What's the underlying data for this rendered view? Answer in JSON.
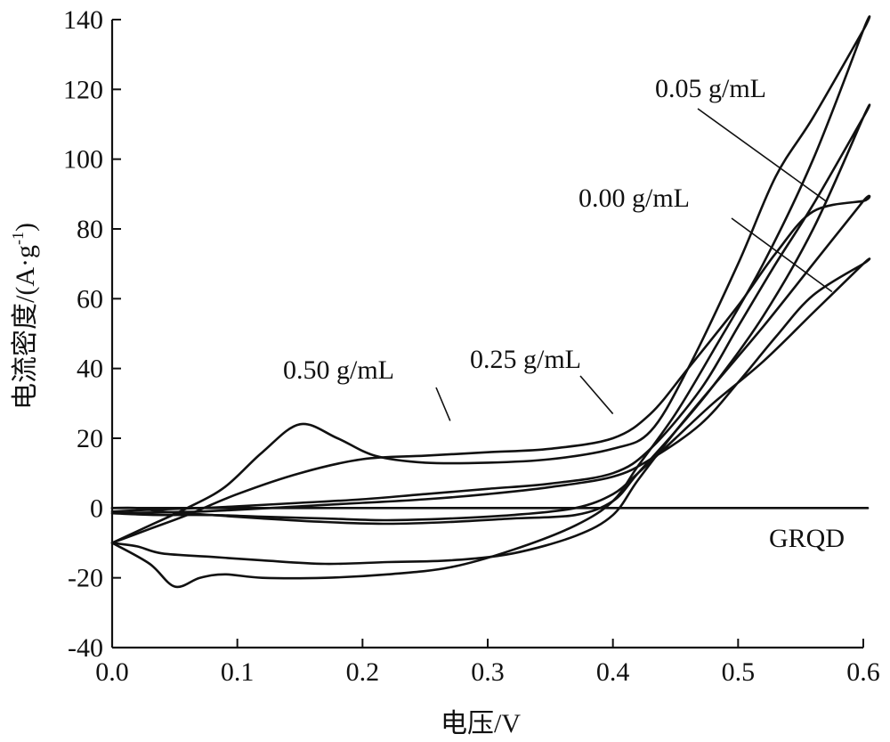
{
  "chart_data": {
    "type": "line",
    "xlabel": "电压/V",
    "ylabel": "电流密度/(A·g",
    "ylabel_sup": "-1",
    "ylabel_close": ")",
    "xlim": [
      0.0,
      0.6
    ],
    "ylim": [
      -40,
      140
    ],
    "x_ticks": [
      0.0,
      0.1,
      0.2,
      0.3,
      0.4,
      0.5,
      0.6
    ],
    "x_tick_labels": [
      "0.0",
      "0.1",
      "0.2",
      "0.3",
      "0.4",
      "0.5",
      "0.6"
    ],
    "y_ticks": [
      -40,
      -20,
      0,
      20,
      40,
      60,
      80,
      100,
      120,
      140
    ],
    "y_tick_labels": [
      "-40",
      "-20",
      "0",
      "20",
      "40",
      "60",
      "80",
      "100",
      "120",
      "140"
    ],
    "grid": false,
    "series": [
      {
        "name": "GRQD",
        "x": [
          0.0,
          0.1,
          0.2,
          0.3,
          0.4,
          0.5,
          0.6
        ],
        "y": [
          0,
          0,
          0,
          0,
          0,
          0,
          0
        ]
      },
      {
        "name": "0.00 g/mL",
        "x": [
          0.0,
          0.03,
          0.07,
          0.1,
          0.15,
          0.2,
          0.25,
          0.3,
          0.35,
          0.4,
          0.43,
          0.47,
          0.5,
          0.53,
          0.56,
          0.6,
          0.6,
          0.56,
          0.52,
          0.48,
          0.45,
          0.42,
          0.4,
          0.37,
          0.32,
          0.27,
          0.22,
          0.17,
          0.12,
          0.08,
          0.04,
          0.02,
          0.0
        ],
        "y": [
          -1.5,
          -1.3,
          -1.0,
          -0.5,
          0.5,
          1.5,
          2.5,
          4,
          6,
          9,
          14,
          24,
          36,
          49,
          61,
          70,
          70,
          56,
          42,
          30,
          20,
          10,
          4,
          0,
          -2,
          -3,
          -3.5,
          -3,
          -2.5,
          -2,
          -2,
          -1.8,
          -1.5
        ]
      },
      {
        "name": "0.05 g/mL",
        "x": [
          0.0,
          0.03,
          0.07,
          0.1,
          0.15,
          0.2,
          0.25,
          0.3,
          0.35,
          0.4,
          0.43,
          0.47,
          0.5,
          0.53,
          0.56,
          0.6,
          0.6,
          0.56,
          0.52,
          0.48,
          0.45,
          0.42,
          0.4,
          0.37,
          0.32,
          0.27,
          0.22,
          0.17,
          0.12,
          0.08,
          0.04,
          0.02,
          0.0
        ],
        "y": [
          -1.0,
          -0.5,
          0,
          0.5,
          1.5,
          2.5,
          4,
          5.5,
          7,
          10,
          17,
          34,
          52,
          70,
          87,
          112,
          112,
          80,
          55,
          35,
          22,
          10,
          2,
          -2,
          -3,
          -4,
          -4.5,
          -4,
          -3,
          -2,
          -1,
          0,
          0
        ]
      },
      {
        "name": "0.25 g/mL",
        "x": [
          0.0,
          0.03,
          0.06,
          0.1,
          0.15,
          0.2,
          0.25,
          0.3,
          0.35,
          0.4,
          0.43,
          0.46,
          0.5,
          0.53,
          0.56,
          0.6,
          0.6,
          0.56,
          0.52,
          0.48,
          0.45,
          0.42,
          0.4,
          0.37,
          0.32,
          0.27,
          0.22,
          0.17,
          0.12,
          0.08,
          0.04,
          0.02,
          0.0
        ],
        "y": [
          -10,
          -6,
          -2,
          4,
          10,
          14,
          15,
          16,
          17,
          20,
          27,
          40,
          58,
          73,
          85,
          88,
          88,
          70,
          52,
          35,
          22,
          8,
          -2,
          -8,
          -13,
          -15,
          -15.5,
          -16,
          -15,
          -14,
          -13,
          -11,
          -10
        ]
      },
      {
        "name": "0.50 g/mL",
        "x": [
          0.0,
          0.03,
          0.06,
          0.09,
          0.12,
          0.15,
          0.18,
          0.21,
          0.25,
          0.3,
          0.35,
          0.4,
          0.43,
          0.46,
          0.5,
          0.53,
          0.56,
          0.6,
          0.6,
          0.56,
          0.52,
          0.48,
          0.45,
          0.42,
          0.4,
          0.37,
          0.32,
          0.27,
          0.22,
          0.17,
          0.12,
          0.09,
          0.07,
          0.05,
          0.03,
          0.0
        ],
        "y": [
          -10,
          -5,
          0,
          6,
          16,
          24,
          20,
          15,
          13,
          13,
          14,
          17,
          22,
          40,
          70,
          95,
          112,
          137,
          137,
          100,
          70,
          45,
          27,
          12,
          2,
          -5,
          -12,
          -17,
          -19,
          -20,
          -20,
          -19,
          -20,
          -22.5,
          -16,
          -10
        ]
      }
    ],
    "annotations": [
      {
        "text": "0.05 g/mL",
        "series": "0.05 g/mL",
        "pointer_x": 0.57,
        "pointer_y": 88
      },
      {
        "text": "0.00 g/mL",
        "series": "0.00 g/mL",
        "pointer_x": 0.575,
        "pointer_y": 62
      },
      {
        "text": "0.25 g/mL",
        "series": "0.25 g/mL",
        "pointer_x": 0.4,
        "pointer_y": 27
      },
      {
        "text": "0.50 g/mL",
        "series": "0.50 g/mL",
        "pointer_x": 0.27,
        "pointer_y": 25
      },
      {
        "text": "GRQD",
        "series": "GRQD"
      }
    ]
  }
}
